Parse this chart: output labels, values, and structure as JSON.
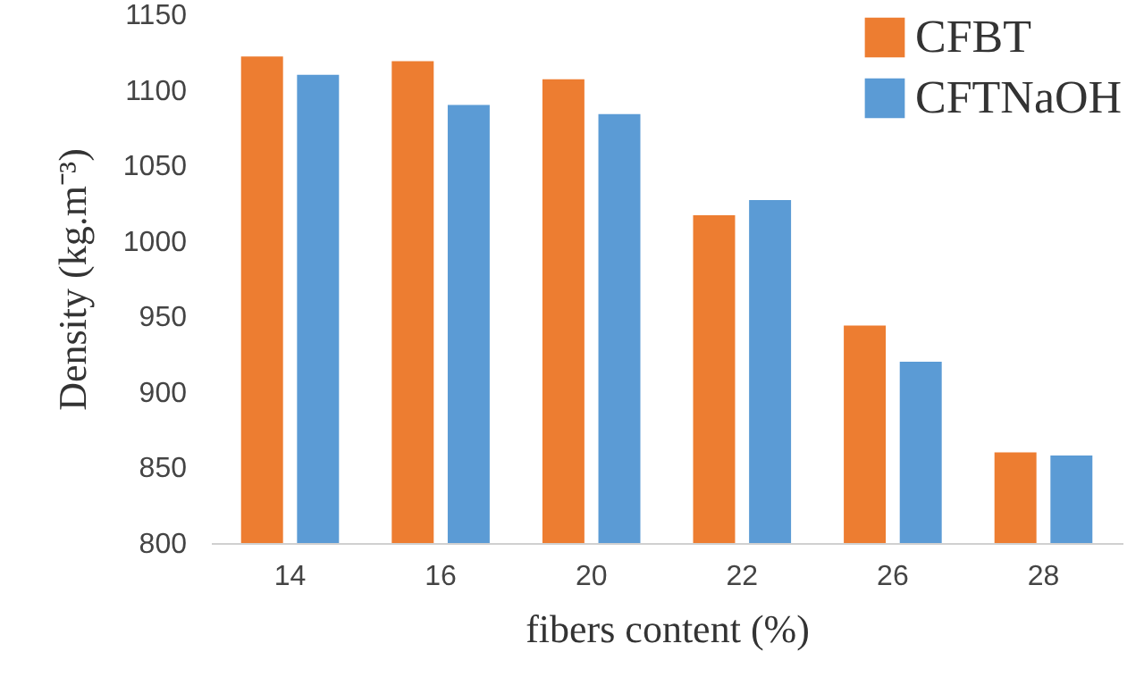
{
  "chart_data": {
    "type": "bar",
    "xlabel": "fibers content (%)",
    "ylabel": "Density (kg.m⁻³)",
    "categories": [
      "14",
      "16",
      "20",
      "22",
      "26",
      "28"
    ],
    "series": [
      {
        "name": "CFBT",
        "color": "#ed7d31",
        "values": [
          1122,
          1119,
          1107,
          1017,
          944,
          860
        ]
      },
      {
        "name": "CFTNaOH",
        "color": "#5b9bd5",
        "values": [
          1110,
          1090,
          1084,
          1027,
          920,
          858
        ]
      }
    ],
    "ylim": [
      800,
      1150
    ],
    "yticks": [
      800,
      850,
      900,
      950,
      1000,
      1050,
      1100,
      1150
    ],
    "legend": "top right",
    "grid": false
  }
}
